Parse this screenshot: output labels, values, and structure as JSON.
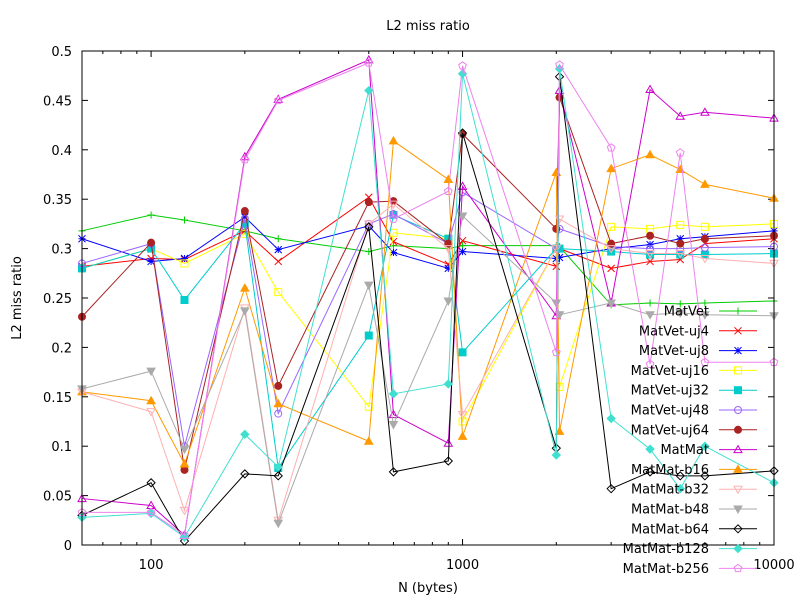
{
  "chart_data": {
    "type": "line",
    "title": "L2 miss ratio",
    "xlabel": "N (bytes)",
    "ylabel": "L2 miss ratio",
    "xscale": "log",
    "xlim": [
      60,
      10000
    ],
    "ylim": [
      0,
      0.5
    ],
    "x_ticks": [
      100,
      1000,
      10000
    ],
    "x_tick_labels": [
      "100",
      "1000",
      "10000"
    ],
    "y_ticks": [
      0,
      0.05,
      0.1,
      0.15,
      0.2,
      0.25,
      0.3,
      0.35,
      0.4,
      0.45,
      0.5
    ],
    "y_tick_labels": [
      "0",
      "0.05",
      "0.1",
      "0.15",
      "0.2",
      "0.25",
      "0.3",
      "0.35",
      "0.4",
      "0.45",
      "0.5"
    ],
    "grid": false,
    "legend": "right",
    "x": [
      60,
      100,
      128,
      200,
      256,
      500,
      600,
      900,
      1000,
      2000,
      2048,
      3000,
      4000,
      5000,
      6000,
      10000
    ],
    "series": [
      {
        "name": "MatVet",
        "color": "#00cc00",
        "marker": "plus",
        "values": [
          0.318,
          0.334,
          0.329,
          0.318,
          0.31,
          0.297,
          0.303,
          0.3,
          0.303,
          0.303,
          0.302,
          0.243,
          0.245,
          0.244,
          0.245,
          0.247
        ]
      },
      {
        "name": "MatVet-uj4",
        "color": "#ff0000",
        "marker": "x",
        "values": [
          0.282,
          0.29,
          0.289,
          0.318,
          0.287,
          0.352,
          0.307,
          0.284,
          0.308,
          0.282,
          0.3,
          0.28,
          0.287,
          0.289,
          0.305,
          0.31
        ]
      },
      {
        "name": "MatVet-uj8",
        "color": "#0000ff",
        "marker": "star",
        "values": [
          0.31,
          0.287,
          0.29,
          0.332,
          0.299,
          0.323,
          0.296,
          0.28,
          0.297,
          0.29,
          0.291,
          0.3,
          0.304,
          0.31,
          0.312,
          0.318
        ]
      },
      {
        "name": "MatVet-uj16",
        "color": "#ffff00",
        "marker": "square-open",
        "values": [
          0.28,
          0.3,
          0.285,
          0.315,
          0.256,
          0.14,
          0.316,
          0.31,
          0.125,
          0.3,
          0.16,
          0.322,
          0.32,
          0.324,
          0.322,
          0.325
        ]
      },
      {
        "name": "MatVet-uj32",
        "color": "#00cccc",
        "marker": "square-filled",
        "values": [
          0.28,
          0.3,
          0.248,
          0.325,
          0.078,
          0.212,
          0.334,
          0.31,
          0.195,
          0.3,
          0.3,
          0.297,
          0.294,
          0.294,
          0.294,
          0.295
        ]
      },
      {
        "name": "MatVet-uj48",
        "color": "#9966ff",
        "marker": "circle-open",
        "values": [
          0.285,
          0.305,
          0.1,
          0.33,
          0.133,
          0.325,
          0.335,
          0.305,
          0.357,
          0.3,
          0.32,
          0.302,
          0.3,
          0.3,
          0.301,
          0.302
        ]
      },
      {
        "name": "MatVet-uj64",
        "color": "#aa2222",
        "marker": "circle-filled",
        "values": [
          0.231,
          0.306,
          0.076,
          0.338,
          0.161,
          0.347,
          0.348,
          0.305,
          0.416,
          0.32,
          0.453,
          0.305,
          0.313,
          0.305,
          0.31,
          0.313
        ]
      },
      {
        "name": "MatMat",
        "color": "#cc00cc",
        "marker": "triangle-up",
        "values": [
          0.047,
          0.04,
          0.01,
          0.393,
          0.451,
          0.491,
          0.132,
          0.103,
          0.363,
          0.232,
          0.46,
          0.245,
          0.461,
          0.434,
          0.438,
          0.432
        ]
      },
      {
        "name": "MatMat-b16",
        "color": "#ff9900",
        "marker": "triangle-up-filled",
        "values": [
          0.155,
          0.146,
          0.082,
          0.26,
          0.143,
          0.105,
          0.409,
          0.37,
          0.11,
          0.377,
          0.115,
          0.381,
          0.395,
          0.38,
          0.365,
          0.351
        ]
      },
      {
        "name": "MatMat-b32",
        "color": "#ffb0b0",
        "marker": "triangle-down-open",
        "values": [
          0.155,
          0.135,
          0.035,
          0.24,
          0.025,
          0.325,
          0.345,
          0.3,
          0.132,
          0.3,
          0.33,
          0.3,
          0.295,
          0.295,
          0.29,
          0.285
        ]
      },
      {
        "name": "MatMat-b48",
        "color": "#aaaaaa",
        "marker": "triangle-down",
        "values": [
          0.158,
          0.176,
          0.097,
          0.237,
          0.022,
          0.263,
          0.122,
          0.247,
          0.333,
          0.245,
          0.233,
          0.245,
          0.233,
          0.235,
          0.233,
          0.232
        ]
      },
      {
        "name": "MatMat-b64",
        "color": "#000000",
        "marker": "diamond-open",
        "values": [
          0.03,
          0.063,
          0.004,
          0.072,
          0.07,
          0.322,
          0.074,
          0.085,
          0.417,
          0.098,
          0.474,
          0.057,
          0.074,
          0.07,
          0.07,
          0.075
        ]
      },
      {
        "name": "MatMat-b128",
        "color": "#40e0d0",
        "marker": "diamond-filled",
        "values": [
          0.028,
          0.032,
          0.008,
          0.112,
          0.079,
          0.46,
          0.153,
          0.163,
          0.477,
          0.091,
          0.482,
          0.128,
          0.097,
          0.057,
          0.1,
          0.063
        ]
      },
      {
        "name": "MatMat-b256",
        "color": "#ee82ee",
        "marker": "pentagon-open",
        "values": [
          0.033,
          0.033,
          0.01,
          0.39,
          0.45,
          0.488,
          0.33,
          0.358,
          0.485,
          0.195,
          0.486,
          0.402,
          0.183,
          0.397,
          0.185,
          0.185
        ]
      }
    ]
  }
}
